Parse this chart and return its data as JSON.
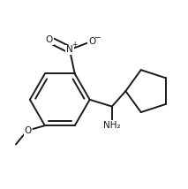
{
  "bg_color": "#ffffff",
  "line_color": "#1a1a1a",
  "line_width": 1.4,
  "figsize": [
    2.13,
    2.14
  ],
  "dpi": 100,
  "xlim": [
    -0.05,
    1.05
  ],
  "ylim": [
    -0.05,
    1.05
  ]
}
